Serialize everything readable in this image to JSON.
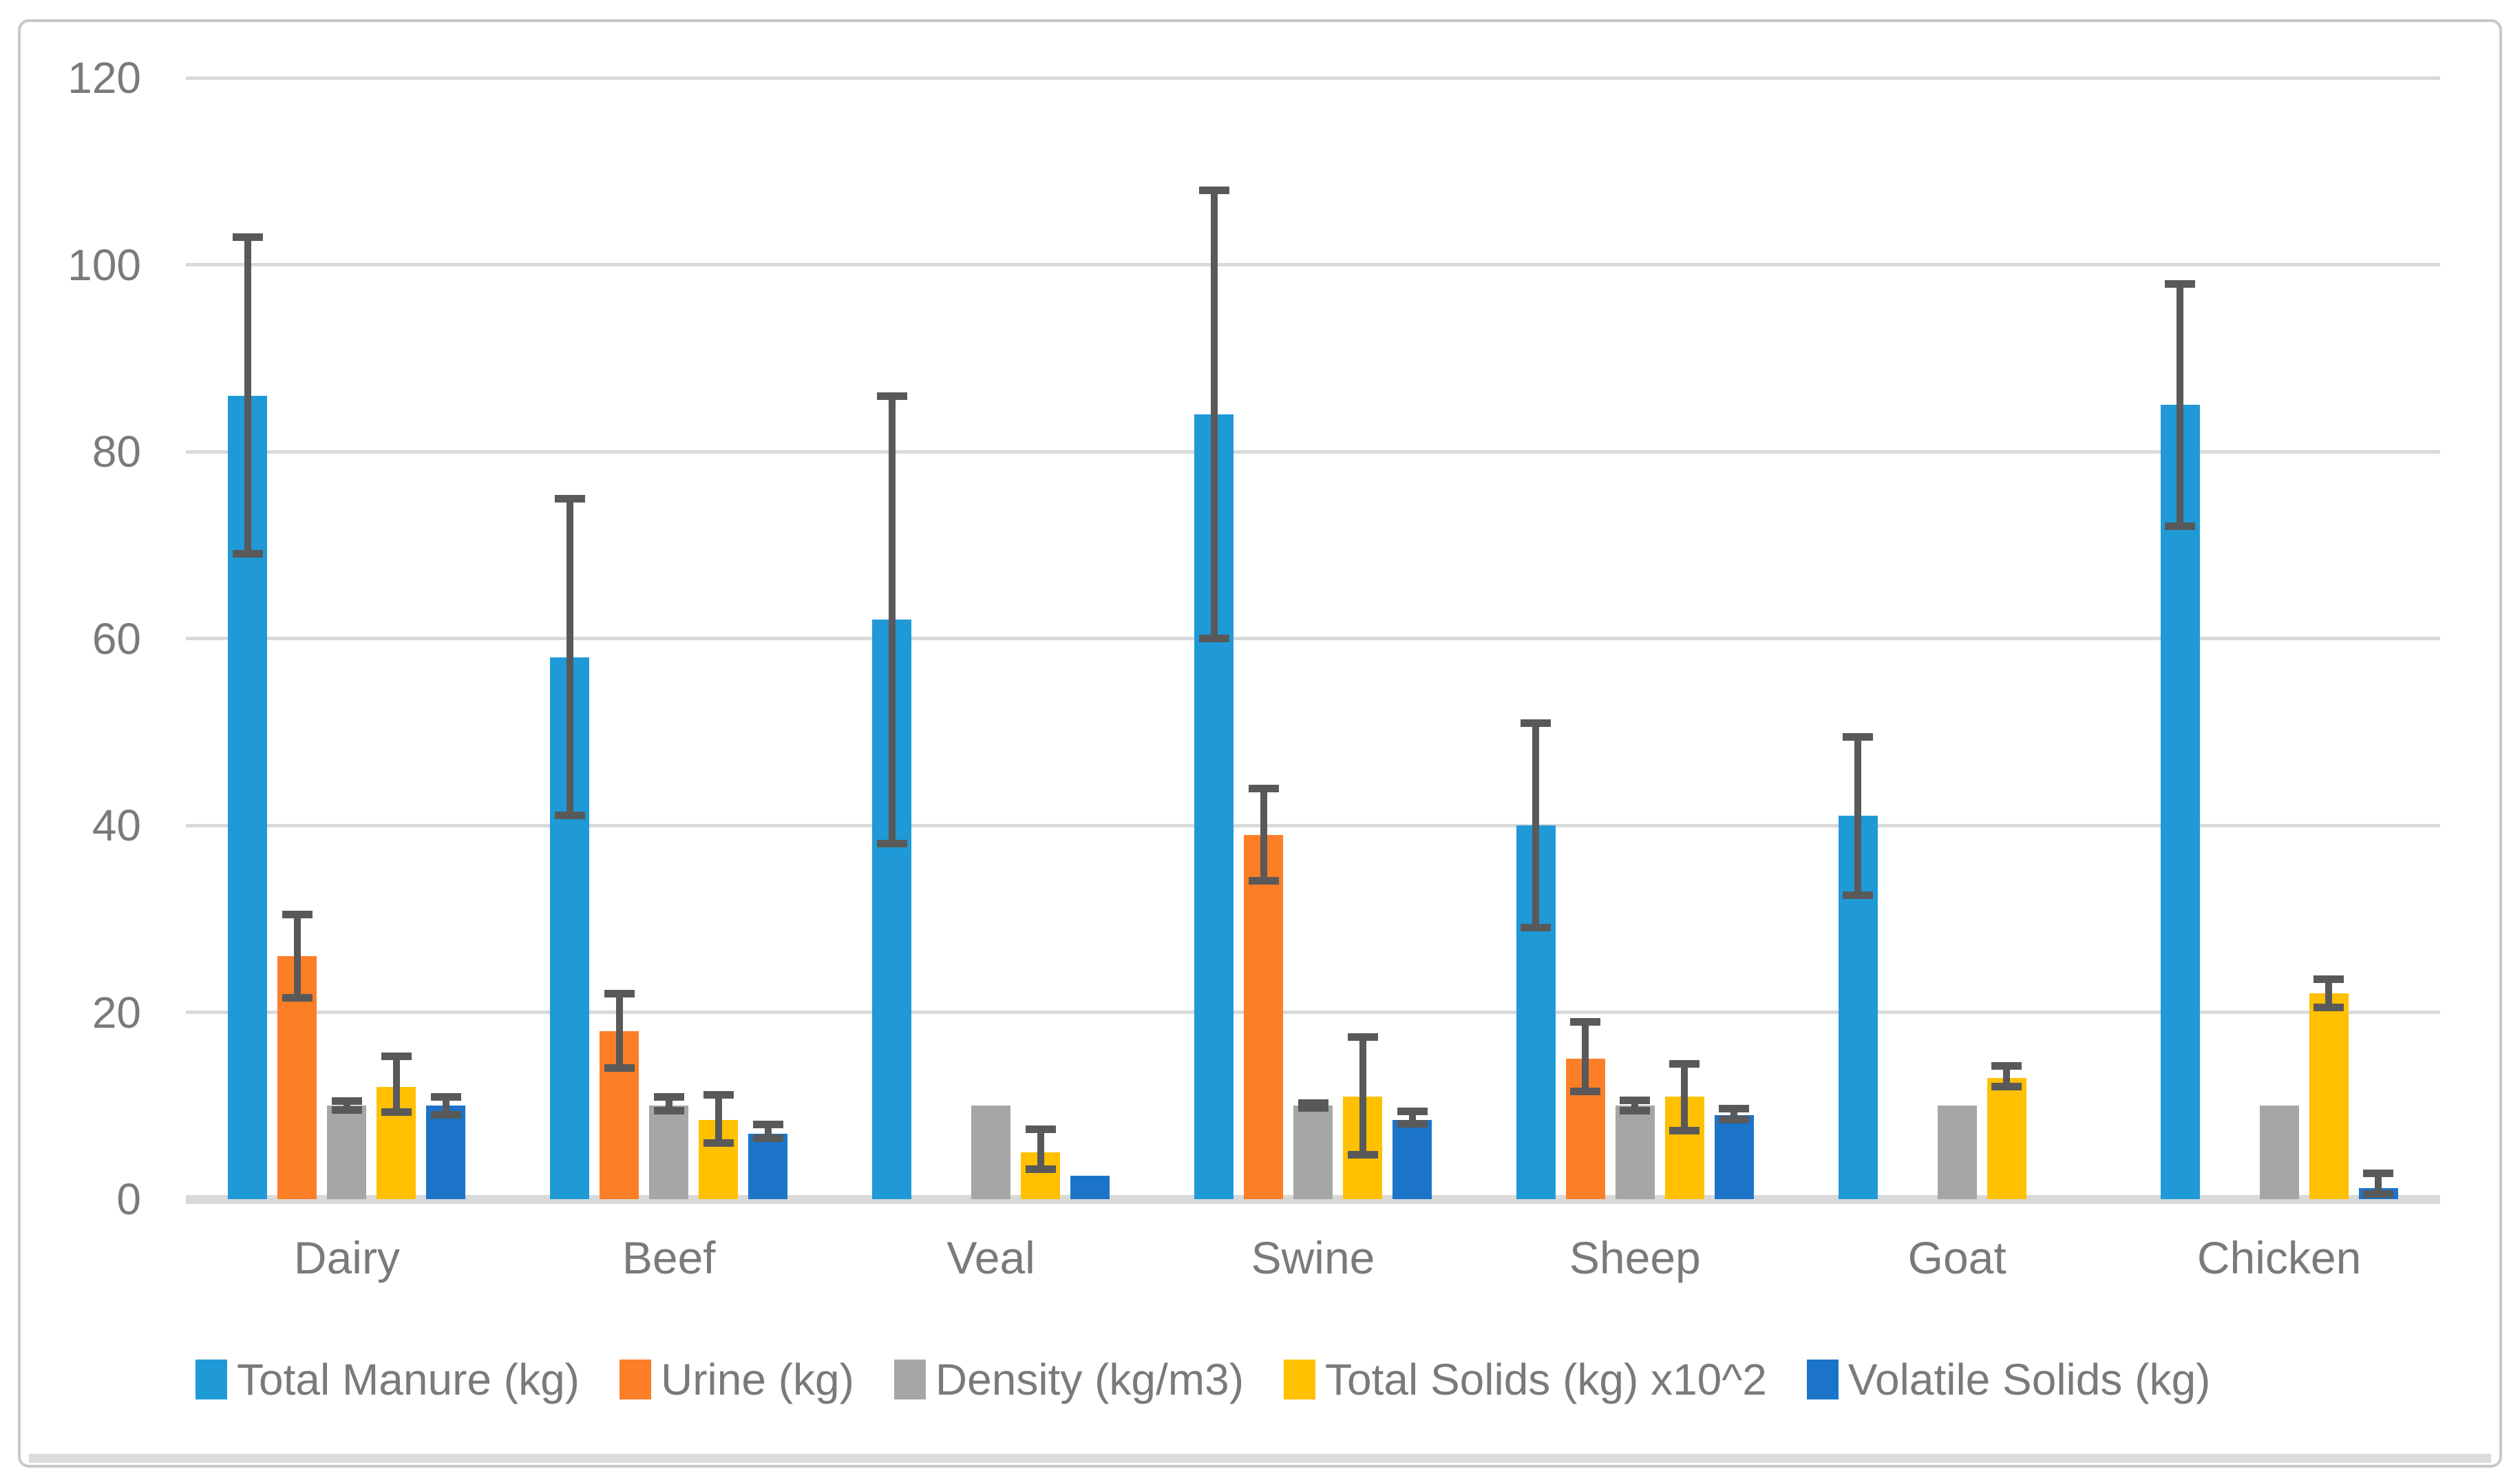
{
  "chart_data": {
    "type": "bar",
    "title": "",
    "categories": [
      "Dairy",
      "Beef",
      "Veal",
      "Swine",
      "Sheep",
      "Goat",
      "Chicken"
    ],
    "series": [
      {
        "name": "Total Manure (kg)",
        "color": "#1F9AD7",
        "values": [
          86,
          58,
          62,
          84,
          40,
          41,
          85
        ],
        "error_low": [
          69,
          41,
          38,
          60,
          29,
          32.5,
          72
        ],
        "error_high": [
          103,
          75,
          86,
          108,
          51,
          49.5,
          98
        ]
      },
      {
        "name": "Urine (kg)",
        "color": "#FC7E26",
        "values": [
          26,
          18,
          null,
          39,
          15,
          null,
          null
        ],
        "error_low": [
          21.5,
          14,
          null,
          34,
          11.5,
          null,
          null
        ],
        "error_high": [
          30.5,
          22,
          null,
          44,
          19,
          null,
          null
        ]
      },
      {
        "name": "Density (kg/m3)",
        "color": "#A6A6A6",
        "values": [
          10,
          10,
          10,
          10,
          10,
          10,
          10
        ],
        "error_low": [
          9.5,
          9.4,
          null,
          9.7,
          9.4,
          null,
          null
        ],
        "error_high": [
          10.5,
          11,
          null,
          10.3,
          10.6,
          null,
          null
        ]
      },
      {
        "name": "Total Solids (kg) x10^2",
        "color": "#FFC000",
        "values": [
          12,
          8.5,
          5,
          11,
          11,
          13,
          22
        ],
        "error_low": [
          9.3,
          6,
          3.2,
          4.7,
          7.3,
          12,
          20.5
        ],
        "error_high": [
          15.3,
          11.2,
          7.5,
          17.4,
          14.5,
          14.3,
          23.6
        ]
      },
      {
        "name": "Volatile Solids (kg)",
        "color": "#1B74C8",
        "values": [
          10,
          7,
          2.5,
          8.5,
          9,
          null,
          1.2
        ],
        "error_low": [
          9,
          6.5,
          null,
          8,
          8.5,
          null,
          0.5
        ],
        "error_high": [
          11,
          8,
          null,
          9.4,
          9.7,
          null,
          2.8
        ]
      }
    ],
    "y_axis": {
      "min": 0,
      "max": 120,
      "ticks": [
        0,
        20,
        40,
        60,
        80,
        100,
        120
      ]
    },
    "x_axis": {
      "label": ""
    },
    "grid": true,
    "legend_position": "bottom",
    "error_bars": true
  },
  "style": {
    "error_bar_color": "#595959",
    "gridline_color": "#D9D9D9",
    "axis_line_color": "#D9D9D9",
    "text_color": "#7A7A7A",
    "frame_border_color": "#C8C8C8",
    "bottom_strip_color": "#DCDCDC",
    "background_color": "#FFFFFF"
  }
}
